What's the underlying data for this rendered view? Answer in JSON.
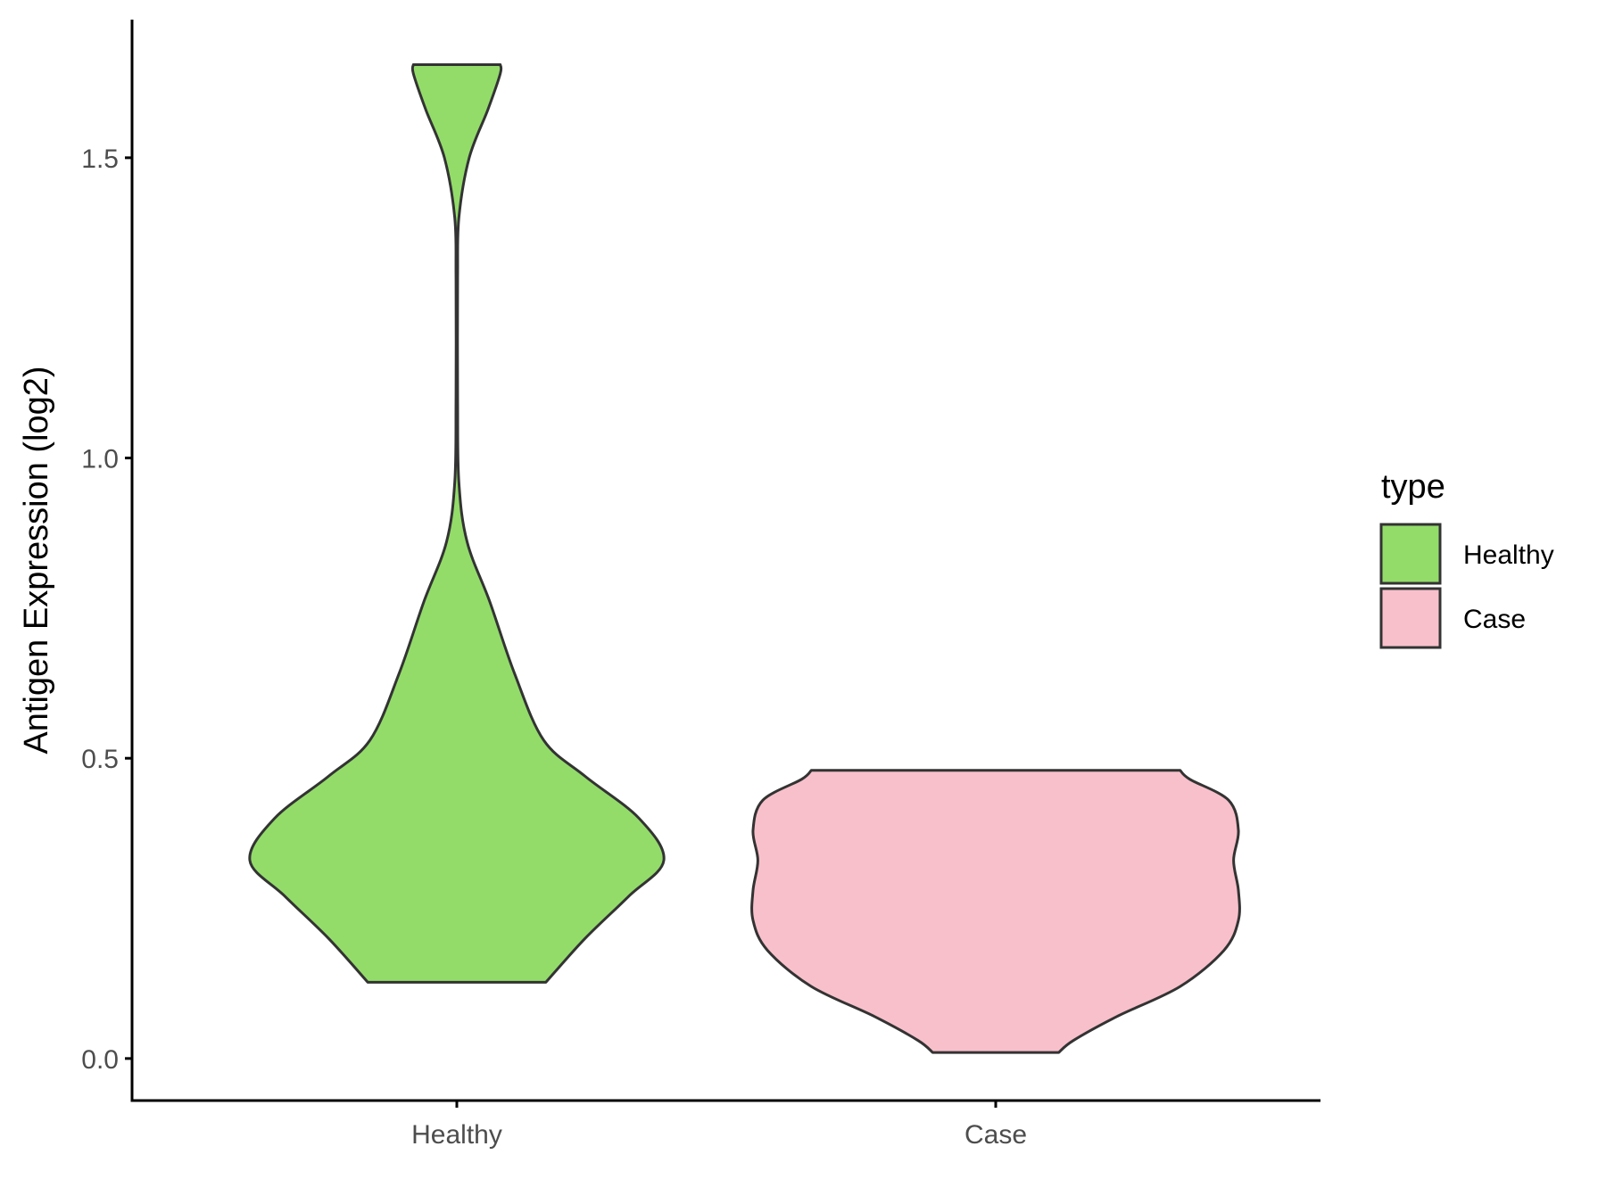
{
  "chart_data": {
    "type": "violin",
    "title": "",
    "xlabel": "",
    "ylabel": "Antigen Expression (log2)",
    "ylim": [
      -0.07,
      1.73
    ],
    "yticks": [
      0.0,
      0.5,
      1.0,
      1.5
    ],
    "ytick_labels": [
      "0.0",
      "0.5",
      "1.0",
      "1.5"
    ],
    "categories": [
      "Healthy",
      "Case"
    ],
    "grid": false,
    "legend": {
      "title": "type",
      "placement": "right",
      "entries": [
        {
          "label": "Healthy",
          "color": "#93DC6A"
        },
        {
          "label": "Case",
          "color": "#F8C0CB"
        }
      ]
    },
    "series": [
      {
        "name": "Healthy",
        "color": "#93DC6A",
        "profile": [
          {
            "y": 0.127,
            "w": 0.43
          },
          {
            "y": 0.2,
            "w": 0.62
          },
          {
            "y": 0.27,
            "w": 0.83
          },
          {
            "y": 0.33,
            "w": 1.0
          },
          {
            "y": 0.4,
            "w": 0.88
          },
          {
            "y": 0.47,
            "w": 0.62
          },
          {
            "y": 0.53,
            "w": 0.42
          },
          {
            "y": 0.64,
            "w": 0.28
          },
          {
            "y": 0.76,
            "w": 0.16
          },
          {
            "y": 0.86,
            "w": 0.05
          },
          {
            "y": 0.96,
            "w": 0.01
          },
          {
            "y": 1.1,
            "w": 0.004
          },
          {
            "y": 1.3,
            "w": 0.004
          },
          {
            "y": 1.4,
            "w": 0.01
          },
          {
            "y": 1.5,
            "w": 0.06
          },
          {
            "y": 1.58,
            "w": 0.15
          },
          {
            "y": 1.64,
            "w": 0.21
          },
          {
            "y": 1.655,
            "w": 0.21
          }
        ]
      },
      {
        "name": "Case",
        "color": "#F8C0CB",
        "profile": [
          {
            "y": 0.01,
            "w": 0.26
          },
          {
            "y": 0.03,
            "w": 0.32
          },
          {
            "y": 0.07,
            "w": 0.5
          },
          {
            "y": 0.12,
            "w": 0.76
          },
          {
            "y": 0.18,
            "w": 0.94
          },
          {
            "y": 0.23,
            "w": 1.0
          },
          {
            "y": 0.28,
            "w": 1.0
          },
          {
            "y": 0.33,
            "w": 0.98
          },
          {
            "y": 0.38,
            "w": 1.0
          },
          {
            "y": 0.43,
            "w": 0.96
          },
          {
            "y": 0.465,
            "w": 0.8
          },
          {
            "y": 0.48,
            "w": 0.76
          }
        ]
      }
    ]
  }
}
